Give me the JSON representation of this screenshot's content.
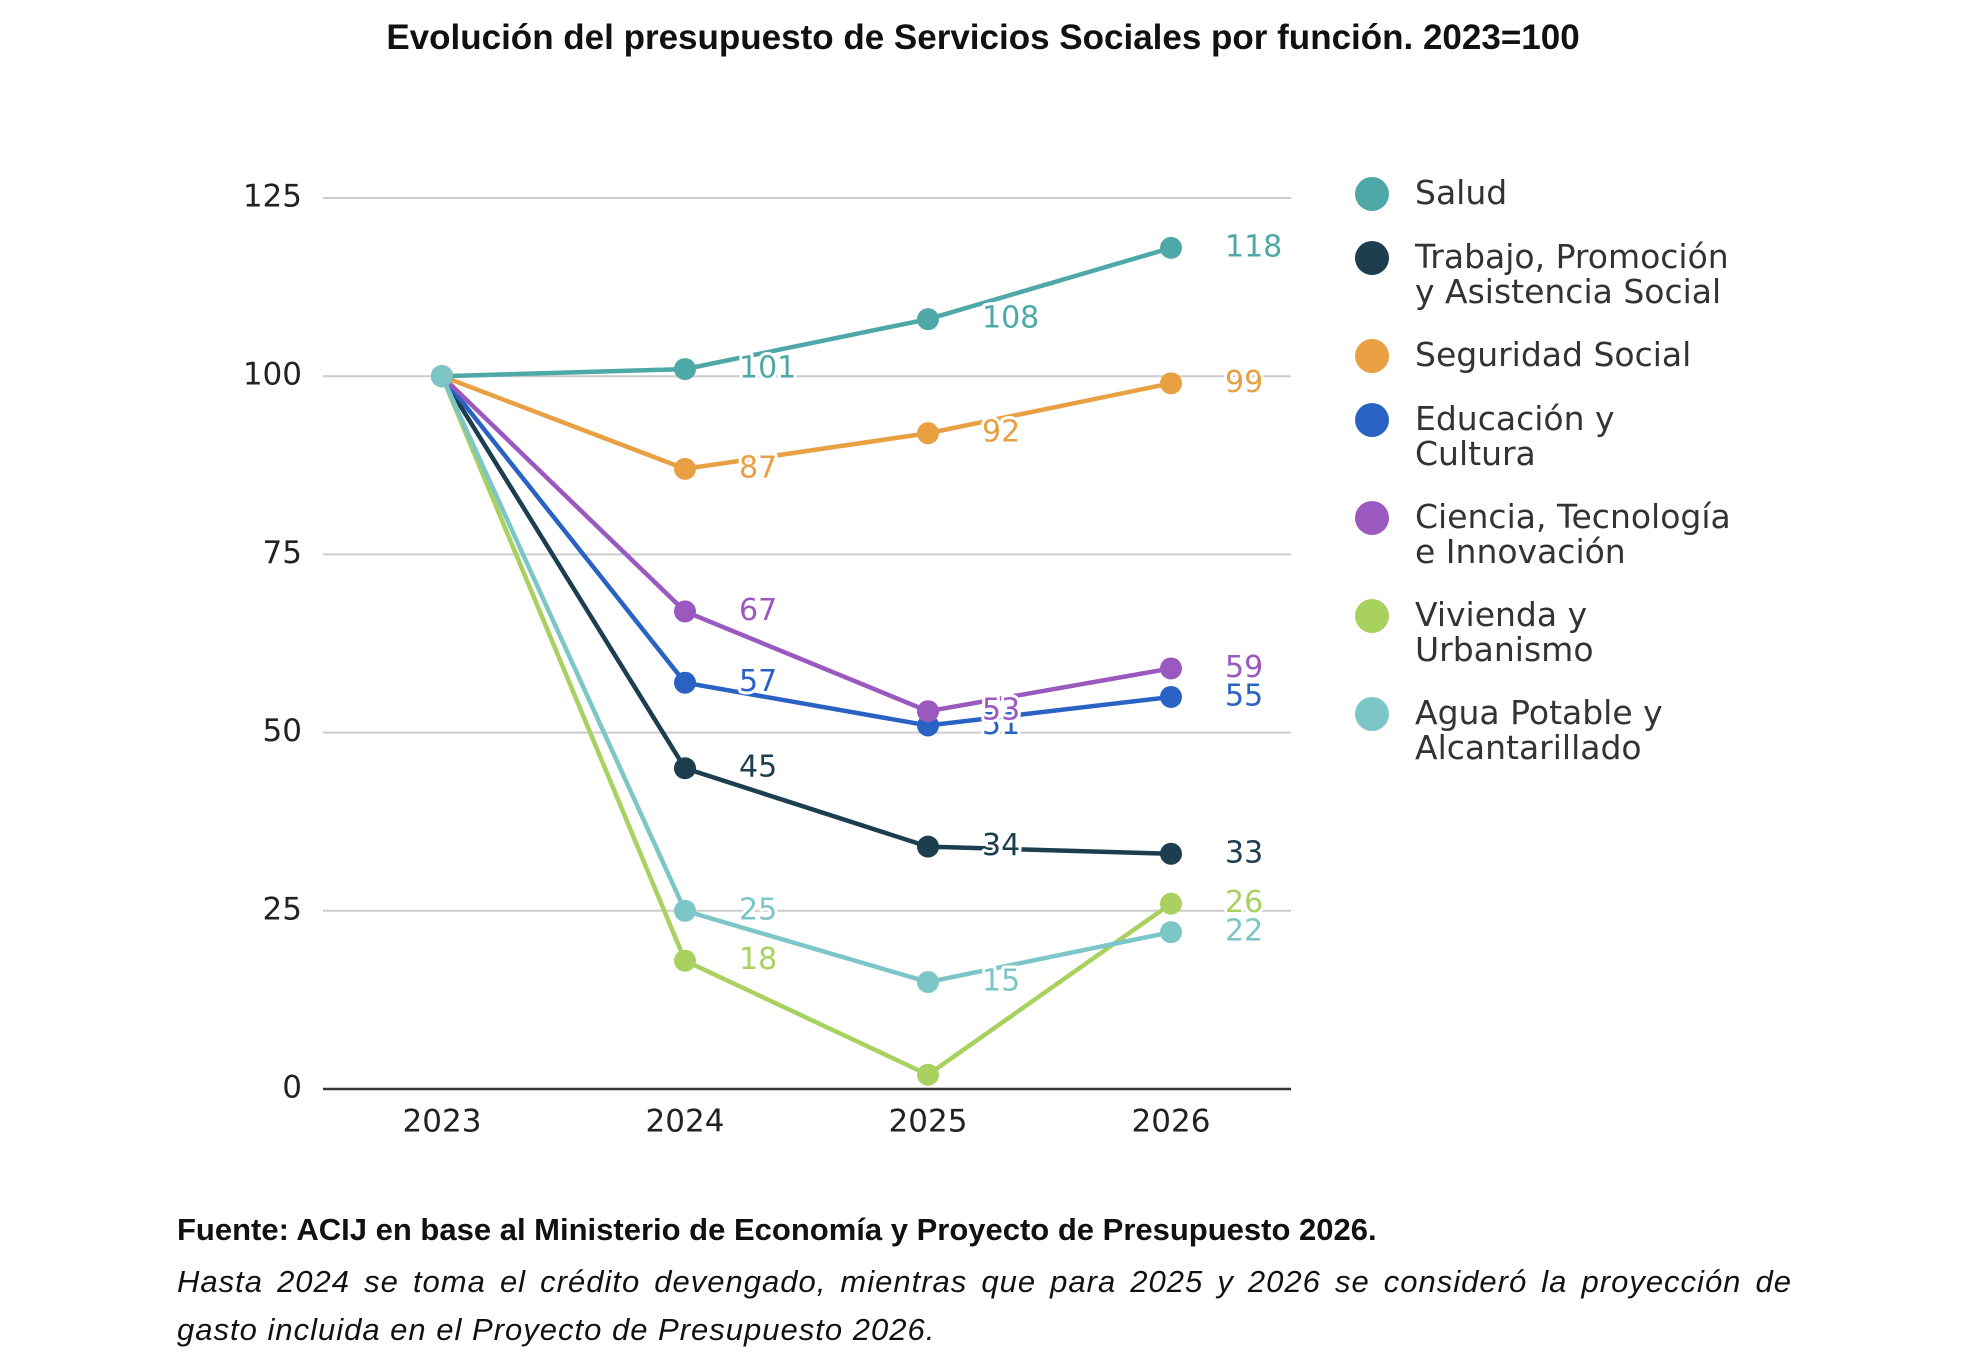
{
  "chart_data": {
    "type": "line",
    "title": "Evolución del presupuesto de Servicios Sociales por función. 2023=100",
    "categories": [
      "2023",
      "2024",
      "2025",
      "2026"
    ],
    "ylim": [
      0,
      125
    ],
    "yticks": [
      0,
      25,
      50,
      75,
      100,
      125
    ],
    "grid": true,
    "legend": "right",
    "series": [
      {
        "name": "Salud",
        "color": "#4fa8a8",
        "values": [
          100,
          101,
          108,
          118
        ],
        "value_labels": [
          null,
          "101",
          "108",
          "118"
        ]
      },
      {
        "name": "Trabajo, Promoción y Asistencia Social",
        "color": "#1d3e4f",
        "values": [
          100,
          45,
          34,
          33
        ],
        "value_labels": [
          null,
          "45",
          "34",
          "33"
        ]
      },
      {
        "name": "Seguridad Social",
        "color": "#e8a043",
        "values": [
          100,
          87,
          92,
          99
        ],
        "value_labels": [
          null,
          "87",
          "92",
          "99"
        ]
      },
      {
        "name": "Educación y Cultura",
        "color": "#2a62c4",
        "values": [
          100,
          57,
          51,
          55
        ],
        "value_labels": [
          null,
          "57",
          "51",
          "55"
        ]
      },
      {
        "name": "Ciencia, Tecnología e Innovación",
        "color": "#9b59c0",
        "values": [
          100,
          67,
          53,
          59
        ],
        "value_labels": [
          null,
          "67",
          "53",
          "59"
        ]
      },
      {
        "name": "Vivienda y Urbanismo",
        "color": "#a8d160",
        "values": [
          100,
          18,
          2,
          26
        ],
        "value_labels": [
          null,
          "18",
          null,
          "26"
        ]
      },
      {
        "name": "Agua Potable y Alcantarillado",
        "color": "#7cc6c8",
        "values": [
          100,
          25,
          15,
          22
        ],
        "value_labels": [
          null,
          "25",
          "15",
          "22"
        ]
      }
    ],
    "source": "Fuente: ACIJ en base al Ministerio de Economía y Proyecto de Presupuesto 2026.",
    "note": "Hasta 2024 se toma el crédito devengado, mientras que para 2025 y 2026 se consideró la proyección de gasto incluida en el Proyecto de Presupuesto 2026."
  }
}
